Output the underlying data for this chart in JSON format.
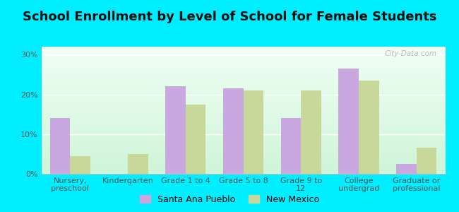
{
  "title": "School Enrollment by Level of School for Female Students",
  "categories": [
    "Nursery,\npreschool",
    "Kindergarten",
    "Grade 1 to 4",
    "Grade 5 to 8",
    "Grade 9 to\n12",
    "College\nundergrad",
    "Graduate or\nprofessional"
  ],
  "santa_ana": [
    14.0,
    0.0,
    22.0,
    21.5,
    14.0,
    26.5,
    2.5
  ],
  "new_mexico": [
    4.5,
    5.0,
    17.5,
    21.0,
    21.0,
    23.5,
    6.5
  ],
  "santa_ana_color": "#c9a8e0",
  "new_mexico_color": "#c8d89a",
  "background_color": "#00eeff",
  "ylim": [
    0,
    32
  ],
  "yticks": [
    0,
    10,
    20,
    30
  ],
  "ytick_labels": [
    "0%",
    "10%",
    "20%",
    "30%"
  ],
  "legend_santa_ana": "Santa Ana Pueblo",
  "legend_new_mexico": "New Mexico",
  "title_fontsize": 13,
  "tick_fontsize": 8,
  "legend_fontsize": 9,
  "watermark": "City-Data.com",
  "bar_width": 0.35
}
